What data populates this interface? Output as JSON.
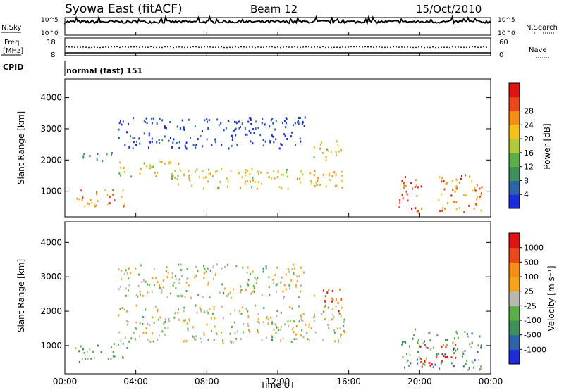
{
  "header": {
    "station": "Syowa East (fitACF)",
    "beam": "Beam 12",
    "date": "15/Oct/2010"
  },
  "aux_panels": {
    "nsky_label": "N.Sky",
    "nsearch_label": "N.Search",
    "noise_ticks": [
      "10^5",
      "10^0"
    ],
    "freq_label_1": "Freq.",
    "freq_label_2": "[MHz]",
    "freq_ticks": [
      "18",
      "8"
    ],
    "nave_label": "Nave",
    "nave_ticks": [
      "60",
      "0"
    ],
    "cpid_label": "CPID",
    "cpid_value": "normal (fast) 151"
  },
  "chart_data": [
    {
      "type": "heatmap",
      "title": "",
      "xlabel": "",
      "ylabel": "Slant Range [km]",
      "xlim": [
        "00:00",
        "00:00"
      ],
      "ylim": [
        180,
        4600
      ],
      "y_ticks": [
        1000,
        2000,
        3000,
        4000
      ],
      "colorbar": {
        "label": "Power [dB]",
        "ticks": [
          4,
          8,
          12,
          16,
          20,
          24,
          28
        ],
        "colors": [
          "#1c2cd8",
          "#2f63a8",
          "#3f8f5c",
          "#5cae49",
          "#b3c83a",
          "#f2c21a",
          "#f58d17",
          "#e8481b",
          "#dd1414"
        ]
      },
      "echo_regions": [
        {
          "x0": 0.5,
          "x1": 3.5,
          "y0": 550,
          "y1": 1100,
          "value": 22
        },
        {
          "x0": 1.0,
          "x1": 3.0,
          "y0": 2000,
          "y1": 2300,
          "value": 10
        },
        {
          "x0": 3.0,
          "x1": 6.5,
          "y0": 1500,
          "y1": 2000,
          "value": 18
        },
        {
          "x0": 6.0,
          "x1": 15.8,
          "y0": 1100,
          "y1": 1750,
          "value": 18
        },
        {
          "x0": 3.0,
          "x1": 13.5,
          "y0": 2400,
          "y1": 3400,
          "value": 6
        },
        {
          "x0": 14.0,
          "x1": 15.6,
          "y0": 2000,
          "y1": 2700,
          "value": 17
        },
        {
          "x0": 18.8,
          "x1": 20.2,
          "y0": 300,
          "y1": 1500,
          "value": 24
        },
        {
          "x0": 21.0,
          "x1": 23.5,
          "y0": 300,
          "y1": 1600,
          "value": 22
        }
      ]
    },
    {
      "type": "heatmap",
      "title": "",
      "xlabel": "Time UT",
      "ylabel": "Slant Range [km]",
      "x_ticks": [
        "00:00",
        "04:00",
        "08:00",
        "12:00",
        "16:00",
        "20:00",
        "00:00"
      ],
      "xlim": [
        "00:00",
        "00:00"
      ],
      "ylim": [
        180,
        4600
      ],
      "y_ticks": [
        1000,
        2000,
        3000,
        4000
      ],
      "colorbar": {
        "label": "Velocity [m s⁻¹]",
        "ticks": [
          1000,
          500,
          100,
          25,
          -25,
          -100,
          -500,
          -1000
        ],
        "colors": [
          "#1c2cd8",
          "#2f63a8",
          "#3f8f5c",
          "#5cae49",
          "#b8b8b0",
          "#f5a31a",
          "#f58d17",
          "#e8481b",
          "#dd1414"
        ]
      },
      "echo_regions": [
        {
          "x0": 0.5,
          "x1": 3.5,
          "y0": 550,
          "y1": 1100,
          "value": -200
        },
        {
          "x0": 3.0,
          "x1": 15.8,
          "y0": 1100,
          "y1": 2200,
          "value": 0
        },
        {
          "x0": 3.0,
          "x1": 13.5,
          "y0": 2400,
          "y1": 3400,
          "value": 0
        },
        {
          "x0": 14.0,
          "x1": 15.6,
          "y0": 2000,
          "y1": 2700,
          "value": 600
        },
        {
          "x0": 18.8,
          "x1": 23.5,
          "y0": 300,
          "y1": 1500,
          "value": -300
        },
        {
          "x0": 20.0,
          "x1": 22.0,
          "y0": 400,
          "y1": 1100,
          "value": 800
        }
      ]
    }
  ]
}
